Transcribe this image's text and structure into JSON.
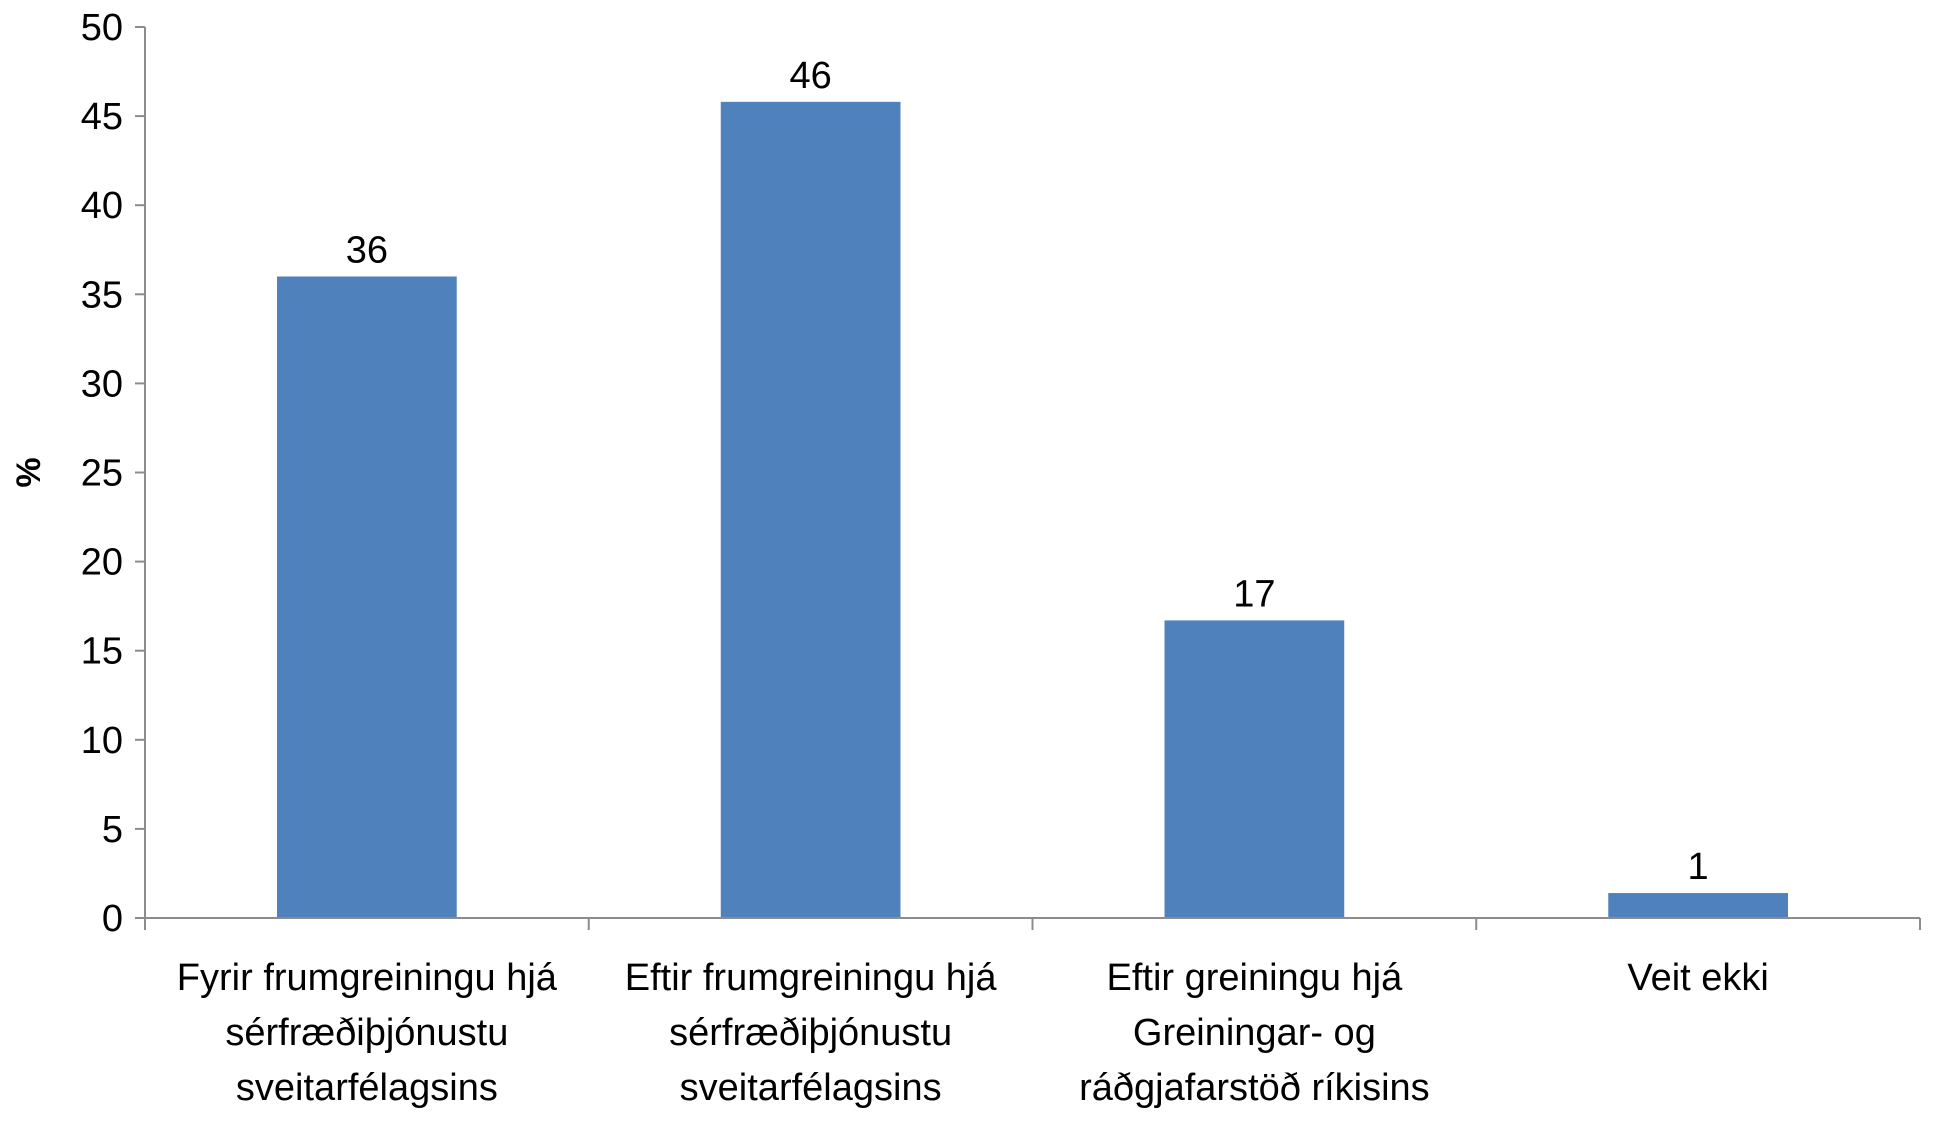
{
  "chart_data": {
    "type": "bar",
    "title": "",
    "xlabel": "",
    "ylabel": "%",
    "ylim": [
      0,
      50
    ],
    "yticks": [
      0,
      5,
      10,
      15,
      20,
      25,
      30,
      35,
      40,
      45,
      50
    ],
    "grid": false,
    "legend": "none",
    "bar_color": "#4F81BD",
    "categories": [
      [
        "Fyrir frumgreiningu hjá",
        "sérfræðiþjónustu",
        "sveitarfélagsins"
      ],
      [
        "Eftir frumgreiningu hjá",
        "sérfræðiþjónustu",
        "sveitarfélagsins"
      ],
      [
        "Eftir greiningu hjá",
        "Greiningar- og",
        "ráðgjafarstöð ríkisins"
      ],
      [
        "Veit ekki"
      ]
    ],
    "values": [
      36,
      45.8,
      16.7,
      1.4
    ],
    "data_labels": [
      "36",
      "46",
      "17",
      "1"
    ]
  }
}
